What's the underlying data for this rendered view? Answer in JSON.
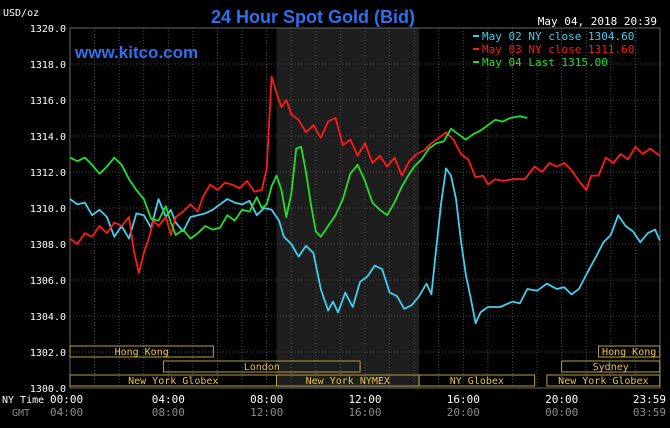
{
  "chart_data": {
    "type": "line",
    "title": "24 Hour Spot Gold (Bid)",
    "unit_label": "USD/oz",
    "timestamp": "May 04, 2018 20:39",
    "watermark": "www.kitco.com",
    "ylim": [
      1300,
      1320
    ],
    "y_ticks": [
      "1300.0",
      "1302.0",
      "1304.0",
      "1306.0",
      "1308.0",
      "1310.0",
      "1312.0",
      "1314.0",
      "1316.0",
      "1318.0",
      "1320.0"
    ],
    "x_rows": [
      {
        "label": "NY Time",
        "ticks": [
          "00:00",
          "04:00",
          "08:00",
          "12:00",
          "16:00",
          "20:00",
          "23:59"
        ],
        "color": "#ffffff"
      },
      {
        "label": "GMT",
        "ticks": [
          "04:00",
          "08:00",
          "12:00",
          "16:00",
          "20:00",
          "00:00",
          "03:59"
        ],
        "color": "#8c8c8c"
      }
    ],
    "sessions": [
      {
        "name": "Hong Kong",
        "start": 0,
        "end": 5.83
      },
      {
        "name": "London",
        "start": 3.8,
        "end": 11.8
      },
      {
        "name": "New York Globex",
        "start": 0,
        "end": 8.4
      },
      {
        "name": "New York NYMEX",
        "start": 8.4,
        "end": 14.2
      },
      {
        "name": "NY Globex",
        "start": 14.2,
        "end": 18.9
      },
      {
        "name": "Hong Kong",
        "start": 21.5,
        "end": 23.99
      },
      {
        "name": "Sydney",
        "start": 20.0,
        "end": 23.99
      },
      {
        "name": "New York Globex",
        "start": 19.4,
        "end": 23.99
      }
    ],
    "shaded_hours": [
      8.4,
      14.2
    ],
    "series": [
      {
        "name": "May 02 NY close 1304.60",
        "color": "#3fd0f0",
        "points": [
          [
            0.0,
            1310.5
          ],
          [
            0.3,
            1310.2
          ],
          [
            0.6,
            1310.3
          ],
          [
            0.9,
            1309.6
          ],
          [
            1.2,
            1309.9
          ],
          [
            1.5,
            1309.5
          ],
          [
            1.8,
            1308.4
          ],
          [
            2.1,
            1309.0
          ],
          [
            2.4,
            1308.3
          ],
          [
            2.7,
            1309.7
          ],
          [
            3.0,
            1309.6
          ],
          [
            3.3,
            1308.9
          ],
          [
            3.6,
            1310.5
          ],
          [
            3.9,
            1309.5
          ],
          [
            4.1,
            1309.9
          ],
          [
            4.3,
            1309.2
          ],
          [
            4.6,
            1308.7
          ],
          [
            4.9,
            1309.5
          ],
          [
            5.2,
            1309.6
          ],
          [
            5.5,
            1309.7
          ],
          [
            5.8,
            1309.9
          ],
          [
            6.1,
            1310.2
          ],
          [
            6.4,
            1310.5
          ],
          [
            6.7,
            1310.3
          ],
          [
            7.0,
            1310.2
          ],
          [
            7.3,
            1310.4
          ],
          [
            7.6,
            1309.6
          ],
          [
            7.9,
            1310.0
          ],
          [
            8.2,
            1309.9
          ],
          [
            8.5,
            1309.3
          ],
          [
            8.7,
            1308.4
          ],
          [
            9.0,
            1308.0
          ],
          [
            9.3,
            1307.3
          ],
          [
            9.6,
            1307.9
          ],
          [
            9.9,
            1307.5
          ],
          [
            10.2,
            1305.5
          ],
          [
            10.5,
            1304.3
          ],
          [
            10.7,
            1304.8
          ],
          [
            10.9,
            1304.2
          ],
          [
            11.2,
            1305.3
          ],
          [
            11.5,
            1304.5
          ],
          [
            11.8,
            1305.9
          ],
          [
            12.1,
            1306.2
          ],
          [
            12.4,
            1306.8
          ],
          [
            12.7,
            1306.6
          ],
          [
            13.0,
            1305.3
          ],
          [
            13.3,
            1305.1
          ],
          [
            13.6,
            1304.4
          ],
          [
            13.9,
            1304.6
          ],
          [
            14.2,
            1305.1
          ],
          [
            14.5,
            1305.8
          ],
          [
            14.7,
            1305.2
          ],
          [
            14.9,
            1307.8
          ],
          [
            15.1,
            1310.3
          ],
          [
            15.3,
            1312.2
          ],
          [
            15.5,
            1311.8
          ],
          [
            15.7,
            1310.5
          ],
          [
            15.9,
            1308.2
          ],
          [
            16.1,
            1306.3
          ],
          [
            16.3,
            1305.0
          ],
          [
            16.5,
            1303.6
          ],
          [
            16.7,
            1304.2
          ],
          [
            17.0,
            1304.5
          ],
          [
            17.5,
            1304.5
          ],
          [
            18.0,
            1304.8
          ],
          [
            18.3,
            1304.7
          ],
          [
            18.6,
            1305.5
          ],
          [
            19.0,
            1305.4
          ],
          [
            19.4,
            1305.8
          ],
          [
            19.8,
            1305.5
          ],
          [
            20.1,
            1305.6
          ],
          [
            20.4,
            1305.2
          ],
          [
            20.7,
            1305.5
          ],
          [
            21.0,
            1306.3
          ],
          [
            21.4,
            1307.3
          ],
          [
            21.7,
            1308.1
          ],
          [
            22.0,
            1308.5
          ],
          [
            22.3,
            1309.6
          ],
          [
            22.6,
            1309.0
          ],
          [
            22.9,
            1308.7
          ],
          [
            23.2,
            1308.1
          ],
          [
            23.5,
            1308.6
          ],
          [
            23.8,
            1308.8
          ],
          [
            23.99,
            1308.2
          ]
        ]
      },
      {
        "name": "May 03 NY close 1311.60",
        "color": "#ff1a1a",
        "points": [
          [
            0.0,
            1308.3
          ],
          [
            0.3,
            1308.0
          ],
          [
            0.6,
            1308.6
          ],
          [
            0.9,
            1308.4
          ],
          [
            1.2,
            1309.0
          ],
          [
            1.5,
            1308.6
          ],
          [
            1.8,
            1309.2
          ],
          [
            2.1,
            1309.0
          ],
          [
            2.4,
            1309.5
          ],
          [
            2.6,
            1307.6
          ],
          [
            2.8,
            1306.4
          ],
          [
            3.0,
            1307.5
          ],
          [
            3.2,
            1308.3
          ],
          [
            3.4,
            1309.3
          ],
          [
            3.6,
            1309.0
          ],
          [
            3.9,
            1309.5
          ],
          [
            4.1,
            1308.5
          ],
          [
            4.3,
            1309.5
          ],
          [
            4.6,
            1309.8
          ],
          [
            4.9,
            1310.2
          ],
          [
            5.2,
            1309.8
          ],
          [
            5.4,
            1310.6
          ],
          [
            5.7,
            1311.3
          ],
          [
            6.0,
            1311.0
          ],
          [
            6.3,
            1311.4
          ],
          [
            6.6,
            1311.3
          ],
          [
            6.9,
            1311.1
          ],
          [
            7.2,
            1311.5
          ],
          [
            7.5,
            1310.9
          ],
          [
            7.8,
            1311.0
          ],
          [
            8.0,
            1312.2
          ],
          [
            8.2,
            1317.3
          ],
          [
            8.4,
            1316.4
          ],
          [
            8.6,
            1315.6
          ],
          [
            8.8,
            1316.0
          ],
          [
            9.0,
            1315.2
          ],
          [
            9.3,
            1314.9
          ],
          [
            9.6,
            1314.2
          ],
          [
            9.9,
            1314.6
          ],
          [
            10.2,
            1313.9
          ],
          [
            10.5,
            1314.8
          ],
          [
            10.8,
            1315.0
          ],
          [
            11.1,
            1313.5
          ],
          [
            11.4,
            1313.8
          ],
          [
            11.7,
            1312.9
          ],
          [
            12.0,
            1313.6
          ],
          [
            12.3,
            1312.5
          ],
          [
            12.6,
            1312.9
          ],
          [
            12.9,
            1312.3
          ],
          [
            13.2,
            1312.8
          ],
          [
            13.5,
            1311.8
          ],
          [
            13.8,
            1312.6
          ],
          [
            14.1,
            1313.0
          ],
          [
            14.4,
            1313.2
          ],
          [
            14.7,
            1313.6
          ],
          [
            15.0,
            1313.9
          ],
          [
            15.3,
            1314.2
          ],
          [
            15.6,
            1313.8
          ],
          [
            15.9,
            1313.0
          ],
          [
            16.2,
            1312.7
          ],
          [
            16.5,
            1311.7
          ],
          [
            16.8,
            1311.8
          ],
          [
            17.0,
            1311.3
          ],
          [
            17.3,
            1311.6
          ],
          [
            17.6,
            1311.5
          ],
          [
            18.0,
            1311.6
          ],
          [
            18.5,
            1311.6
          ],
          [
            18.9,
            1312.3
          ],
          [
            19.2,
            1312.0
          ],
          [
            19.5,
            1312.5
          ],
          [
            19.8,
            1312.3
          ],
          [
            20.1,
            1312.5
          ],
          [
            20.4,
            1312.1
          ],
          [
            20.7,
            1311.5
          ],
          [
            21.0,
            1311.0
          ],
          [
            21.2,
            1311.8
          ],
          [
            21.5,
            1311.8
          ],
          [
            21.8,
            1312.8
          ],
          [
            22.1,
            1312.5
          ],
          [
            22.4,
            1313.0
          ],
          [
            22.7,
            1312.7
          ],
          [
            23.0,
            1313.4
          ],
          [
            23.3,
            1313.0
          ],
          [
            23.6,
            1313.3
          ],
          [
            23.99,
            1312.9
          ]
        ]
      },
      {
        "name": "May 04 Last 1315.00",
        "color": "#22e02a",
        "points": [
          [
            0.0,
            1312.8
          ],
          [
            0.3,
            1312.6
          ],
          [
            0.6,
            1312.8
          ],
          [
            0.9,
            1312.4
          ],
          [
            1.2,
            1311.9
          ],
          [
            1.5,
            1312.3
          ],
          [
            1.8,
            1312.8
          ],
          [
            2.1,
            1312.4
          ],
          [
            2.4,
            1311.6
          ],
          [
            2.7,
            1311.0
          ],
          [
            3.0,
            1310.5
          ],
          [
            3.3,
            1309.4
          ],
          [
            3.6,
            1309.3
          ],
          [
            3.9,
            1310.1
          ],
          [
            4.1,
            1309.2
          ],
          [
            4.3,
            1308.5
          ],
          [
            4.6,
            1308.8
          ],
          [
            4.9,
            1308.3
          ],
          [
            5.2,
            1308.6
          ],
          [
            5.5,
            1309.0
          ],
          [
            5.8,
            1308.8
          ],
          [
            6.1,
            1308.9
          ],
          [
            6.4,
            1309.6
          ],
          [
            6.7,
            1309.3
          ],
          [
            7.0,
            1309.9
          ],
          [
            7.3,
            1309.8
          ],
          [
            7.6,
            1310.6
          ],
          [
            7.8,
            1310.0
          ],
          [
            8.0,
            1310.2
          ],
          [
            8.2,
            1311.2
          ],
          [
            8.4,
            1311.8
          ],
          [
            8.6,
            1311.0
          ],
          [
            8.8,
            1309.5
          ],
          [
            9.0,
            1310.8
          ],
          [
            9.2,
            1313.3
          ],
          [
            9.4,
            1313.4
          ],
          [
            9.6,
            1312.0
          ],
          [
            9.8,
            1310.2
          ],
          [
            10.0,
            1308.7
          ],
          [
            10.2,
            1308.4
          ],
          [
            10.5,
            1309.0
          ],
          [
            10.8,
            1309.6
          ],
          [
            11.1,
            1310.5
          ],
          [
            11.4,
            1311.9
          ],
          [
            11.7,
            1312.4
          ],
          [
            12.0,
            1311.5
          ],
          [
            12.3,
            1310.3
          ],
          [
            12.6,
            1309.9
          ],
          [
            12.9,
            1309.6
          ],
          [
            13.2,
            1310.3
          ],
          [
            13.5,
            1311.2
          ],
          [
            13.8,
            1311.9
          ],
          [
            14.0,
            1312.3
          ],
          [
            14.3,
            1312.7
          ],
          [
            14.6,
            1313.3
          ],
          [
            14.9,
            1313.6
          ],
          [
            15.2,
            1313.7
          ],
          [
            15.5,
            1314.4
          ],
          [
            15.8,
            1314.1
          ],
          [
            16.1,
            1313.8
          ],
          [
            16.4,
            1314.1
          ],
          [
            16.7,
            1314.3
          ],
          [
            17.0,
            1314.6
          ],
          [
            17.3,
            1314.9
          ],
          [
            17.6,
            1314.8
          ],
          [
            17.9,
            1315.0
          ],
          [
            18.3,
            1315.1
          ],
          [
            18.6,
            1315.0
          ]
        ]
      }
    ]
  }
}
